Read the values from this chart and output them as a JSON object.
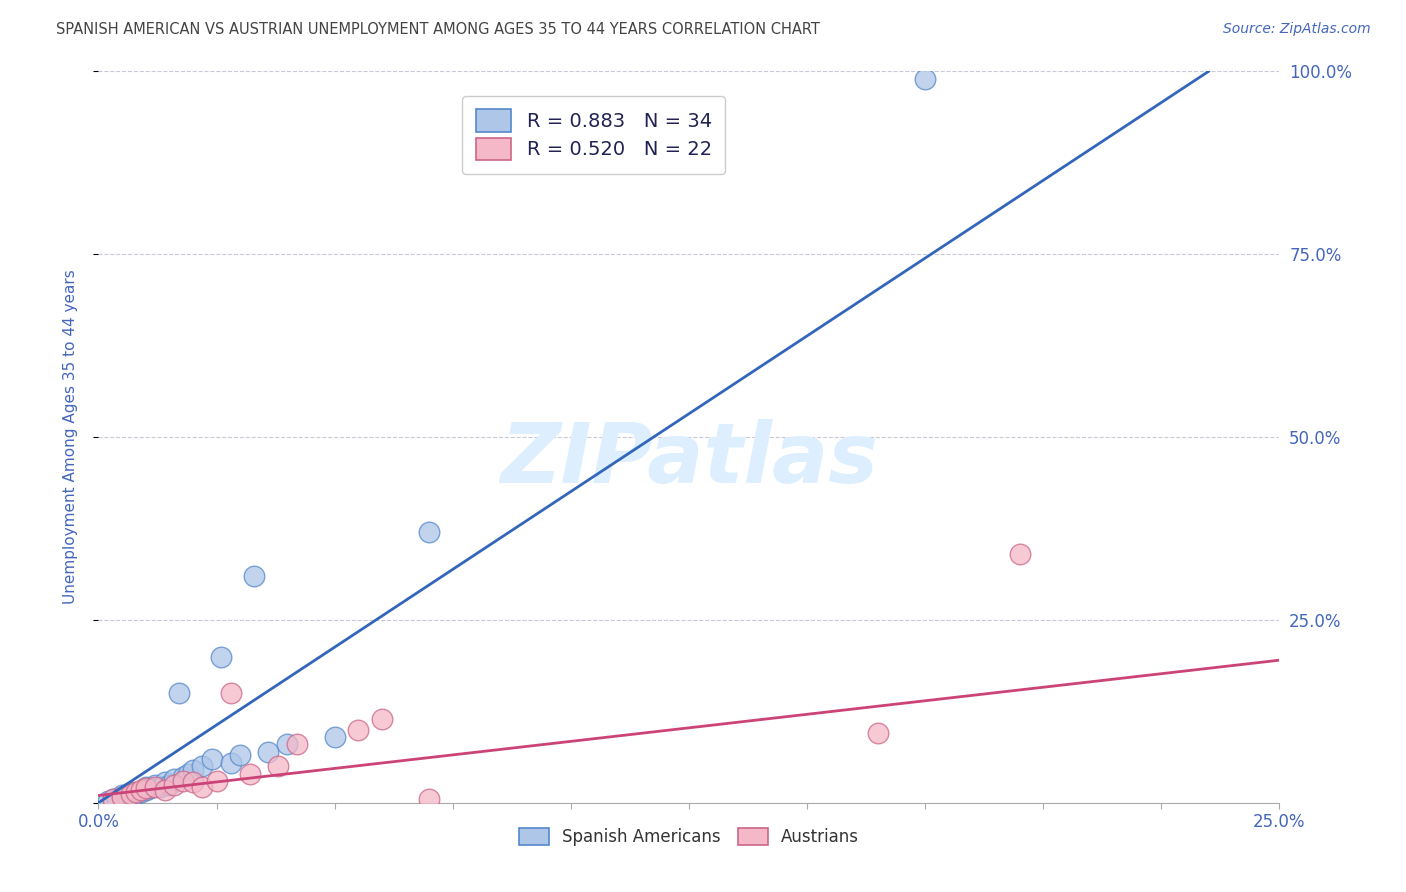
{
  "title": "SPANISH AMERICAN VS AUSTRIAN UNEMPLOYMENT AMONG AGES 35 TO 44 YEARS CORRELATION CHART",
  "source": "Source: ZipAtlas.com",
  "ylabel": "Unemployment Among Ages 35 to 44 years",
  "xlim": [
    0,
    0.25
  ],
  "ylim": [
    0,
    1.0
  ],
  "yticks": [
    0.0,
    0.25,
    0.5,
    0.75,
    1.0
  ],
  "ytick_labels": [
    "",
    "25.0%",
    "50.0%",
    "75.0%",
    "100.0%"
  ],
  "blue_R": 0.883,
  "blue_N": 34,
  "pink_R": 0.52,
  "pink_N": 22,
  "blue_fill_color": "#aec6e8",
  "pink_fill_color": "#f4b8c8",
  "blue_edge_color": "#5588cc",
  "pink_edge_color": "#cc6688",
  "blue_line_color": "#3366bb",
  "pink_line_color": "#cc4477",
  "background_color": "#ffffff",
  "grid_color": "#bbbbcc",
  "title_color": "#444444",
  "axis_label_color": "#4466bb",
  "tick_label_color": "#4466bb",
  "watermark_color": "#ddeeff",
  "legend_text_color": "#222255",
  "blue_scatter_x": [
    0.002,
    0.003,
    0.004,
    0.005,
    0.005,
    0.006,
    0.006,
    0.007,
    0.007,
    0.008,
    0.009,
    0.01,
    0.01,
    0.011,
    0.012,
    0.013,
    0.014,
    0.015,
    0.016,
    0.017,
    0.018,
    0.019,
    0.02,
    0.022,
    0.024,
    0.026,
    0.028,
    0.03,
    0.033,
    0.036,
    0.04,
    0.05,
    0.07,
    0.175
  ],
  "blue_scatter_y": [
    0.002,
    0.005,
    0.005,
    0.008,
    0.01,
    0.008,
    0.012,
    0.01,
    0.015,
    0.012,
    0.015,
    0.018,
    0.022,
    0.02,
    0.025,
    0.022,
    0.028,
    0.025,
    0.032,
    0.15,
    0.035,
    0.04,
    0.045,
    0.05,
    0.06,
    0.2,
    0.055,
    0.065,
    0.31,
    0.07,
    0.08,
    0.09,
    0.37,
    0.99
  ],
  "pink_scatter_x": [
    0.003,
    0.005,
    0.007,
    0.008,
    0.009,
    0.01,
    0.012,
    0.014,
    0.016,
    0.018,
    0.02,
    0.022,
    0.025,
    0.028,
    0.032,
    0.038,
    0.042,
    0.055,
    0.06,
    0.07,
    0.165,
    0.195
  ],
  "pink_scatter_y": [
    0.005,
    0.008,
    0.012,
    0.015,
    0.018,
    0.02,
    0.022,
    0.018,
    0.025,
    0.03,
    0.028,
    0.022,
    0.03,
    0.15,
    0.04,
    0.05,
    0.08,
    0.1,
    0.115,
    0.005,
    0.095,
    0.34
  ],
  "blue_line_x0": 0.0,
  "blue_line_y0": 0.0,
  "blue_line_x1": 0.235,
  "blue_line_y1": 1.0,
  "pink_line_x0": 0.0,
  "pink_line_y0": 0.01,
  "pink_line_x1": 0.25,
  "pink_line_y1": 0.195
}
